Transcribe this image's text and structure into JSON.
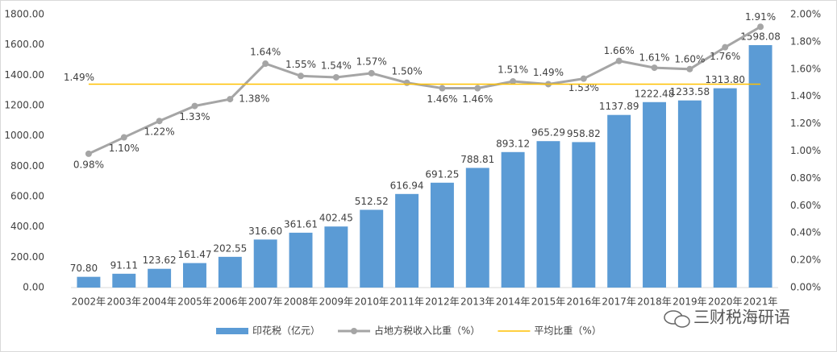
{
  "chart_data": {
    "type": "bar-line",
    "categories": [
      "2002年",
      "2003年",
      "2004年",
      "2005年",
      "2006年",
      "2007年",
      "2008年",
      "2009年",
      "2010年",
      "2011年",
      "2012年",
      "2013年",
      "2014年",
      "2015年",
      "2016年",
      "2017年",
      "2018年",
      "2019年",
      "2020年",
      "2021年"
    ],
    "series": [
      {
        "name": "印花税（亿元）",
        "type": "bar",
        "color": "#5b9bd5",
        "values": [
          70.8,
          91.11,
          123.62,
          161.47,
          202.55,
          316.6,
          361.61,
          402.45,
          512.52,
          616.94,
          691.25,
          788.81,
          893.12,
          965.29,
          958.82,
          1137.89,
          1222.48,
          1233.58,
          1313.8,
          1598.08
        ],
        "value_labels": [
          "70.80",
          "91.11",
          "123.62",
          "161.47",
          "202.55",
          "316.60",
          "361.61",
          "402.45",
          "512.52",
          "616.94",
          "691.25",
          "788.81",
          "893.12",
          "965.29",
          "958.82",
          "1137.89",
          "1222.48",
          "1233.58",
          "1313.80",
          "1598.08"
        ]
      },
      {
        "name": "占地方税收入比重（%）",
        "type": "line",
        "axis": "y2",
        "color": "#a5a5a5",
        "values": [
          0.98,
          1.1,
          1.22,
          1.33,
          1.38,
          1.64,
          1.55,
          1.54,
          1.57,
          1.5,
          1.46,
          1.46,
          1.51,
          1.49,
          1.53,
          1.66,
          1.61,
          1.6,
          1.76,
          1.91
        ],
        "value_labels": [
          "0.98%",
          "1.10%",
          "1.22%",
          "1.33%",
          "1.38%",
          "1.64%",
          "1.55%",
          "1.54%",
          "1.57%",
          "1.50%",
          "1.46%",
          "1.46%",
          "1.51%",
          "1.49%",
          "1.53%",
          "1.66%",
          "1.61%",
          "1.60%",
          "1.76%",
          "1.91%"
        ]
      },
      {
        "name": "平均比重（%）",
        "type": "hline",
        "axis": "y2",
        "color": "#ffc000",
        "value": 1.49,
        "value_label": "1.49%"
      }
    ],
    "ylim": [
      0,
      1800
    ],
    "yticks": [
      {
        "value": 0,
        "label": "0.00"
      },
      {
        "value": 200,
        "label": "200.00"
      },
      {
        "value": 400,
        "label": "400.00"
      },
      {
        "value": 600,
        "label": "600.00"
      },
      {
        "value": 800,
        "label": "800.00"
      },
      {
        "value": 1000,
        "label": "1000.00"
      },
      {
        "value": 1200,
        "label": "1200.00"
      },
      {
        "value": 1400,
        "label": "1400.00"
      },
      {
        "value": 1600,
        "label": "1600.00"
      },
      {
        "value": 1800,
        "label": "1800.00"
      }
    ],
    "y2lim": [
      0,
      2
    ],
    "y2ticks": [
      {
        "value": 0,
        "label": "0.00%"
      },
      {
        "value": 0.2,
        "label": "0.20%"
      },
      {
        "value": 0.4,
        "label": "0.40%"
      },
      {
        "value": 0.6,
        "label": "0.60%"
      },
      {
        "value": 0.8,
        "label": "0.80%"
      },
      {
        "value": 1,
        "label": "1.00%"
      },
      {
        "value": 1.2,
        "label": "1.20%"
      },
      {
        "value": 1.4,
        "label": "1.40%"
      },
      {
        "value": 1.6,
        "label": "1.60%"
      },
      {
        "value": 1.8,
        "label": "1.80%"
      },
      {
        "value": 2,
        "label": "2.00%"
      }
    ],
    "legend": "bottom"
  },
  "watermark": "三财税海研语"
}
